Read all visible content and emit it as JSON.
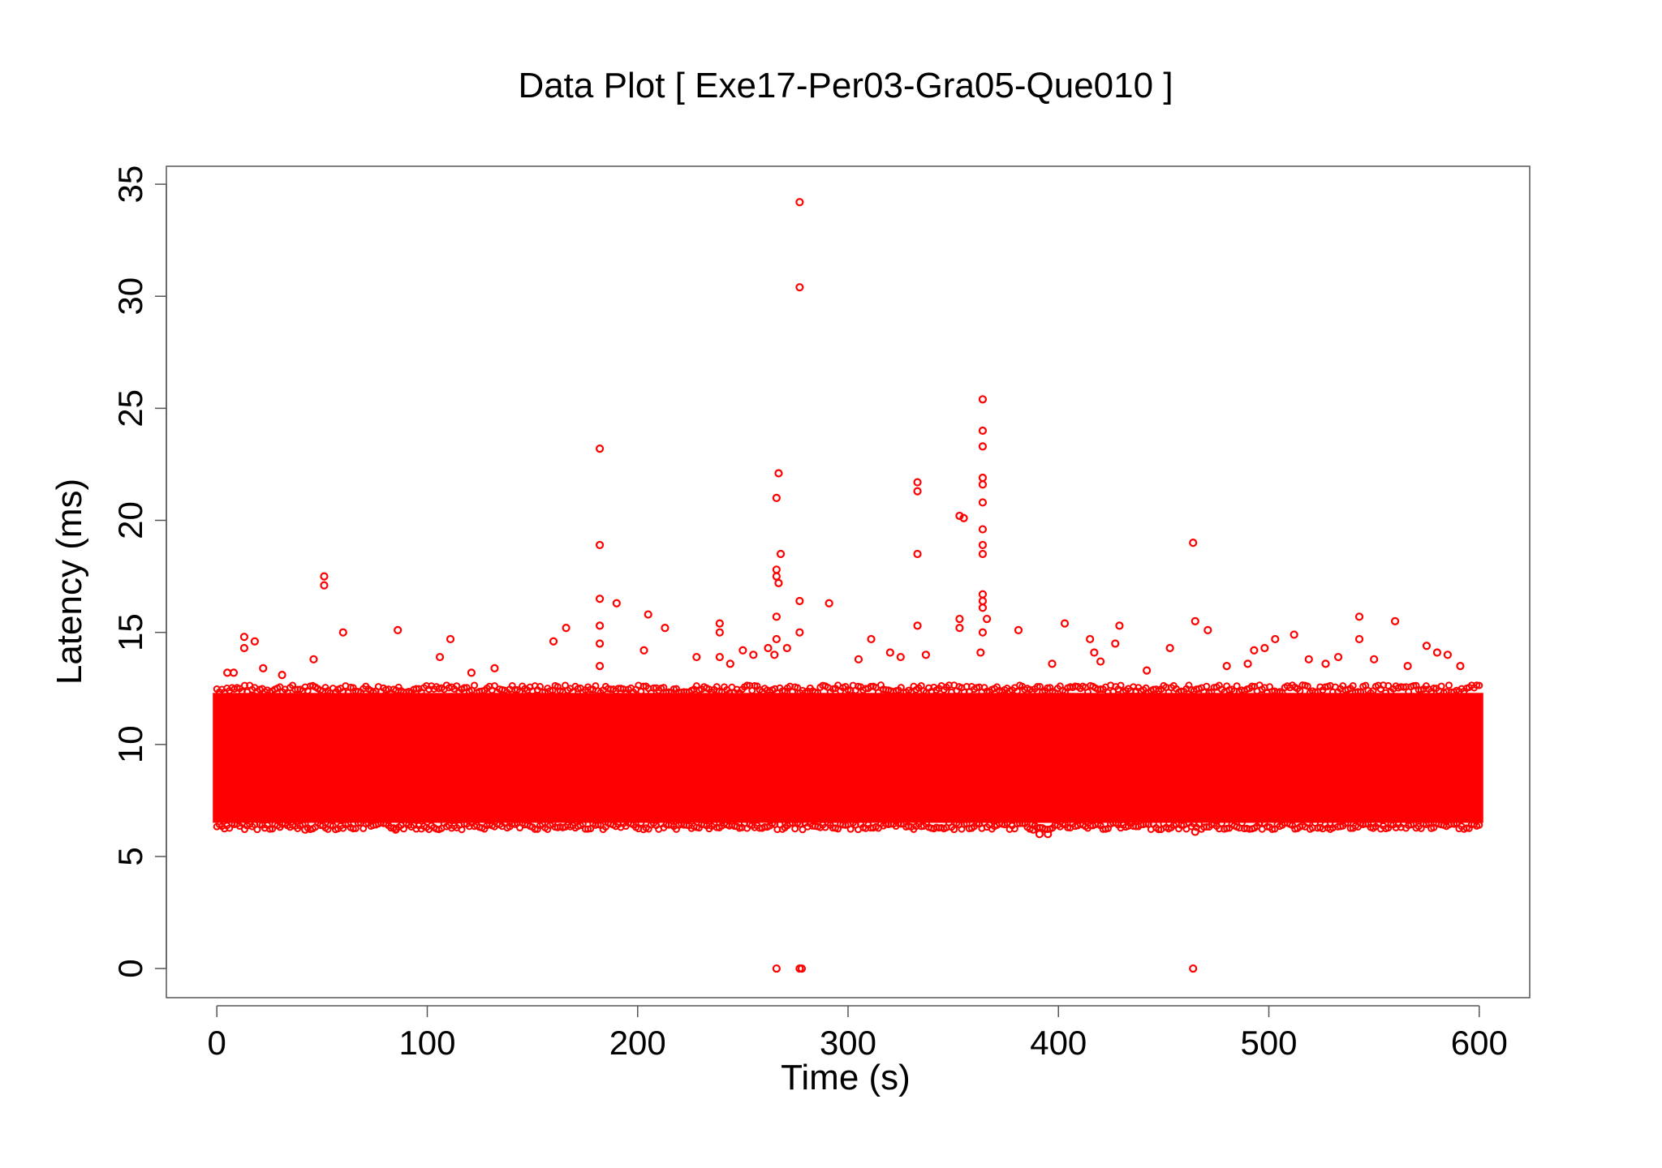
{
  "chart_data": {
    "type": "scatter",
    "title": "Data Plot [ Exe17-Per03-Gra05-Que010 ]",
    "xlabel": "Time (s)",
    "ylabel": "Latency (ms)",
    "xlim": [
      -24,
      624
    ],
    "ylim": [
      -1.3,
      35.8
    ],
    "xticks": [
      0,
      100,
      200,
      300,
      400,
      500,
      600
    ],
    "yticks": [
      0,
      5,
      10,
      15,
      20,
      25,
      30,
      35
    ],
    "marker_color": "#ff0000",
    "grid": false,
    "legend": "none",
    "dense_band": {
      "x_range": [
        0,
        600
      ],
      "y_range": [
        6.5,
        12.3
      ],
      "note_count_per_second": "many"
    },
    "series": [
      {
        "points": [
          [
            13,
            14.8
          ],
          [
            13,
            14.3
          ],
          [
            18,
            14.6
          ],
          [
            51,
            17.5
          ],
          [
            51,
            17.1
          ],
          [
            60,
            15.0
          ],
          [
            86,
            15.1
          ],
          [
            111,
            14.7
          ],
          [
            46,
            13.8
          ],
          [
            22,
            13.4
          ],
          [
            5,
            13.2
          ],
          [
            8,
            13.2
          ],
          [
            106,
            13.9
          ],
          [
            31,
            13.1
          ],
          [
            121,
            13.2
          ],
          [
            132,
            13.4
          ],
          [
            160,
            14.6
          ],
          [
            166,
            15.2
          ],
          [
            182,
            23.2
          ],
          [
            182,
            18.9
          ],
          [
            182,
            16.5
          ],
          [
            182,
            15.3
          ],
          [
            182,
            14.5
          ],
          [
            182,
            13.5
          ],
          [
            190,
            16.3
          ],
          [
            205,
            15.8
          ],
          [
            203,
            14.2
          ],
          [
            213,
            15.2
          ],
          [
            228,
            13.9
          ],
          [
            239,
            15.4
          ],
          [
            239,
            15.0
          ],
          [
            239,
            13.9
          ],
          [
            244,
            13.6
          ],
          [
            250,
            14.2
          ],
          [
            255,
            14.0
          ],
          [
            262,
            14.3
          ],
          [
            265,
            14.0
          ],
          [
            267,
            22.1
          ],
          [
            266,
            21.0
          ],
          [
            268,
            18.5
          ],
          [
            266,
            17.8
          ],
          [
            266,
            17.5
          ],
          [
            267,
            17.2
          ],
          [
            266,
            15.7
          ],
          [
            266,
            14.7
          ],
          [
            271,
            14.3
          ],
          [
            277,
            34.2
          ],
          [
            277,
            30.4
          ],
          [
            277,
            16.4
          ],
          [
            277,
            15.0
          ],
          [
            291,
            16.3
          ],
          [
            305,
            13.8
          ],
          [
            311,
            14.7
          ],
          [
            320,
            14.1
          ],
          [
            325,
            13.9
          ],
          [
            333,
            21.7
          ],
          [
            333,
            21.3
          ],
          [
            333,
            18.5
          ],
          [
            333,
            15.3
          ],
          [
            337,
            14.0
          ],
          [
            353,
            20.2
          ],
          [
            355,
            20.1
          ],
          [
            353,
            15.6
          ],
          [
            353,
            15.2
          ],
          [
            364,
            25.4
          ],
          [
            364,
            24.0
          ],
          [
            364,
            23.3
          ],
          [
            364,
            21.9
          ],
          [
            364,
            21.6
          ],
          [
            364,
            20.8
          ],
          [
            364,
            19.6
          ],
          [
            364,
            18.9
          ],
          [
            364,
            18.5
          ],
          [
            364,
            16.7
          ],
          [
            364,
            16.4
          ],
          [
            364,
            16.1
          ],
          [
            366,
            15.6
          ],
          [
            364,
            15.0
          ],
          [
            363,
            14.1
          ],
          [
            381,
            15.1
          ],
          [
            397,
            13.6
          ],
          [
            403,
            15.4
          ],
          [
            415,
            14.7
          ],
          [
            417,
            14.1
          ],
          [
            420,
            13.7
          ],
          [
            427,
            14.5
          ],
          [
            429,
            15.3
          ],
          [
            442,
            13.3
          ],
          [
            453,
            14.3
          ],
          [
            464,
            19.0
          ],
          [
            465,
            15.5
          ],
          [
            471,
            15.1
          ],
          [
            480,
            13.5
          ],
          [
            490,
            13.6
          ],
          [
            493,
            14.2
          ],
          [
            498,
            14.3
          ],
          [
            503,
            14.7
          ],
          [
            512,
            14.9
          ],
          [
            519,
            13.8
          ],
          [
            527,
            13.6
          ],
          [
            533,
            13.9
          ],
          [
            543,
            15.7
          ],
          [
            543,
            14.7
          ],
          [
            550,
            13.8
          ],
          [
            560,
            15.5
          ],
          [
            566,
            13.5
          ],
          [
            575,
            14.4
          ],
          [
            580,
            14.1
          ],
          [
            585,
            14.0
          ],
          [
            591,
            13.5
          ],
          [
            266,
            0
          ],
          [
            277,
            0
          ],
          [
            278,
            0
          ],
          [
            464,
            0
          ],
          [
            391,
            6.0
          ],
          [
            395,
            6.0
          ],
          [
            388,
            6.2
          ],
          [
            465,
            6.1
          ],
          [
            42,
            6.2
          ],
          [
            85,
            6.2
          ]
        ]
      }
    ]
  }
}
